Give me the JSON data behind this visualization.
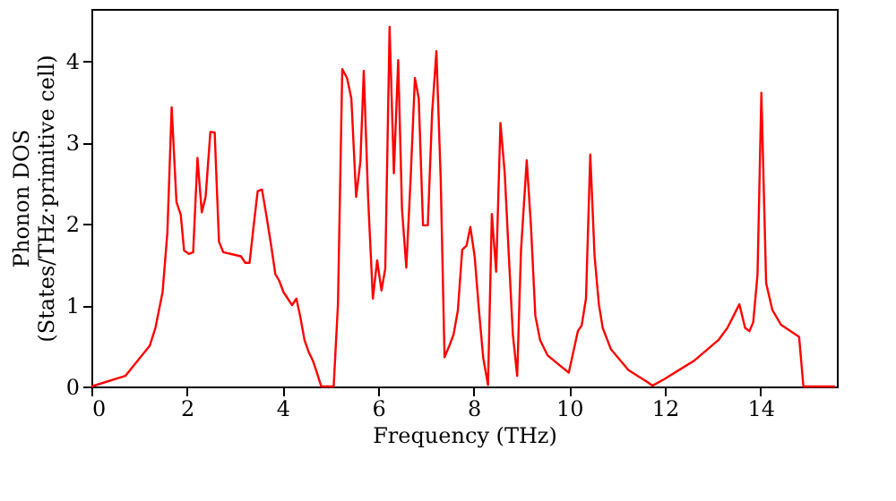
{
  "chart_data": {
    "type": "line",
    "xlabel": "Frequency (THz)",
    "ylabel": "Phonon DOS\n(States/THz·primitive cell)",
    "xlim": [
      0,
      15.6
    ],
    "ylim": [
      0,
      4.64
    ],
    "xticks": [
      0,
      2,
      4,
      6,
      8,
      10,
      12,
      14
    ],
    "yticks": [
      0,
      1,
      2,
      3,
      4
    ],
    "grid": false,
    "legend": false,
    "marker": "none",
    "line_style": "solid",
    "series": [
      {
        "color": "#ff0000",
        "x": [
          0,
          0.71,
          1.22,
          1.34,
          1.49,
          1.59,
          1.68,
          1.78,
          1.87,
          1.94,
          2.04,
          2.13,
          2.22,
          2.31,
          2.39,
          2.49,
          2.58,
          2.67,
          2.76,
          2.91,
          3.13,
          3.22,
          3.31,
          3.4,
          3.48,
          3.57,
          3.66,
          3.76,
          3.85,
          3.93,
          4.02,
          4.11,
          4.2,
          4.29,
          4.37,
          4.46,
          4.55,
          4.64,
          4.72,
          4.81,
          5.07,
          5.16,
          5.25,
          5.35,
          5.44,
          5.54,
          5.63,
          5.7,
          5.79,
          5.89,
          5.98,
          6.07,
          6.15,
          6.24,
          6.33,
          6.42,
          6.5,
          6.59,
          6.68,
          6.77,
          6.85,
          6.94,
          7.04,
          7.13,
          7.22,
          7.31,
          7.39,
          7.49,
          7.58,
          7.67,
          7.76,
          7.85,
          7.93,
          8.02,
          8.11,
          8.2,
          8.3,
          8.38,
          8.47,
          8.56,
          8.65,
          8.73,
          8.82,
          8.91,
          8.99,
          9.11,
          9.2,
          9.29,
          9.39,
          9.55,
          9.8,
          9.99,
          10.18,
          10.26,
          10.35,
          10.44,
          10.53,
          10.62,
          10.7,
          10.87,
          11.24,
          11.62,
          11.74,
          11.99,
          12.62,
          13.12,
          13.31,
          13.56,
          13.68,
          13.77,
          13.85,
          13.94,
          14.02,
          14.12,
          14.25,
          14.43,
          14.81,
          14.9,
          15.56
        ],
        "values": [
          0,
          0.13,
          0.5,
          0.72,
          1.16,
          1.89,
          3.43,
          2.27,
          2.11,
          1.67,
          1.63,
          1.65,
          2.81,
          2.14,
          2.33,
          3.13,
          3.12,
          1.78,
          1.65,
          1.63,
          1.6,
          1.52,
          1.52,
          2.0,
          2.4,
          2.42,
          2.11,
          1.74,
          1.38,
          1.3,
          1.16,
          1.08,
          1.0,
          1.08,
          0.86,
          0.57,
          0.42,
          0.31,
          0.17,
          0,
          0,
          1.01,
          3.9,
          3.79,
          3.54,
          2.33,
          2.77,
          3.88,
          2.33,
          1.08,
          1.55,
          1.18,
          1.45,
          4.42,
          2.62,
          4.01,
          2.18,
          1.46,
          2.55,
          3.79,
          3.54,
          1.98,
          1.98,
          3.36,
          4.12,
          2.55,
          0.36,
          0.5,
          0.64,
          0.94,
          1.68,
          1.73,
          1.96,
          1.6,
          0.94,
          0.35,
          0.02,
          2.12,
          1.41,
          3.24,
          2.62,
          1.67,
          0.64,
          0.13,
          1.67,
          2.78,
          1.96,
          0.87,
          0.57,
          0.38,
          0.26,
          0.17,
          0.68,
          0.75,
          1.08,
          2.85,
          1.6,
          1.01,
          0.72,
          0.46,
          0.2,
          0.06,
          0.01,
          0.09,
          0.32,
          0.57,
          0.72,
          1.01,
          0.72,
          0.68,
          0.79,
          1.38,
          3.61,
          1.27,
          0.94,
          0.76,
          0.61,
          0,
          0
        ]
      }
    ]
  }
}
